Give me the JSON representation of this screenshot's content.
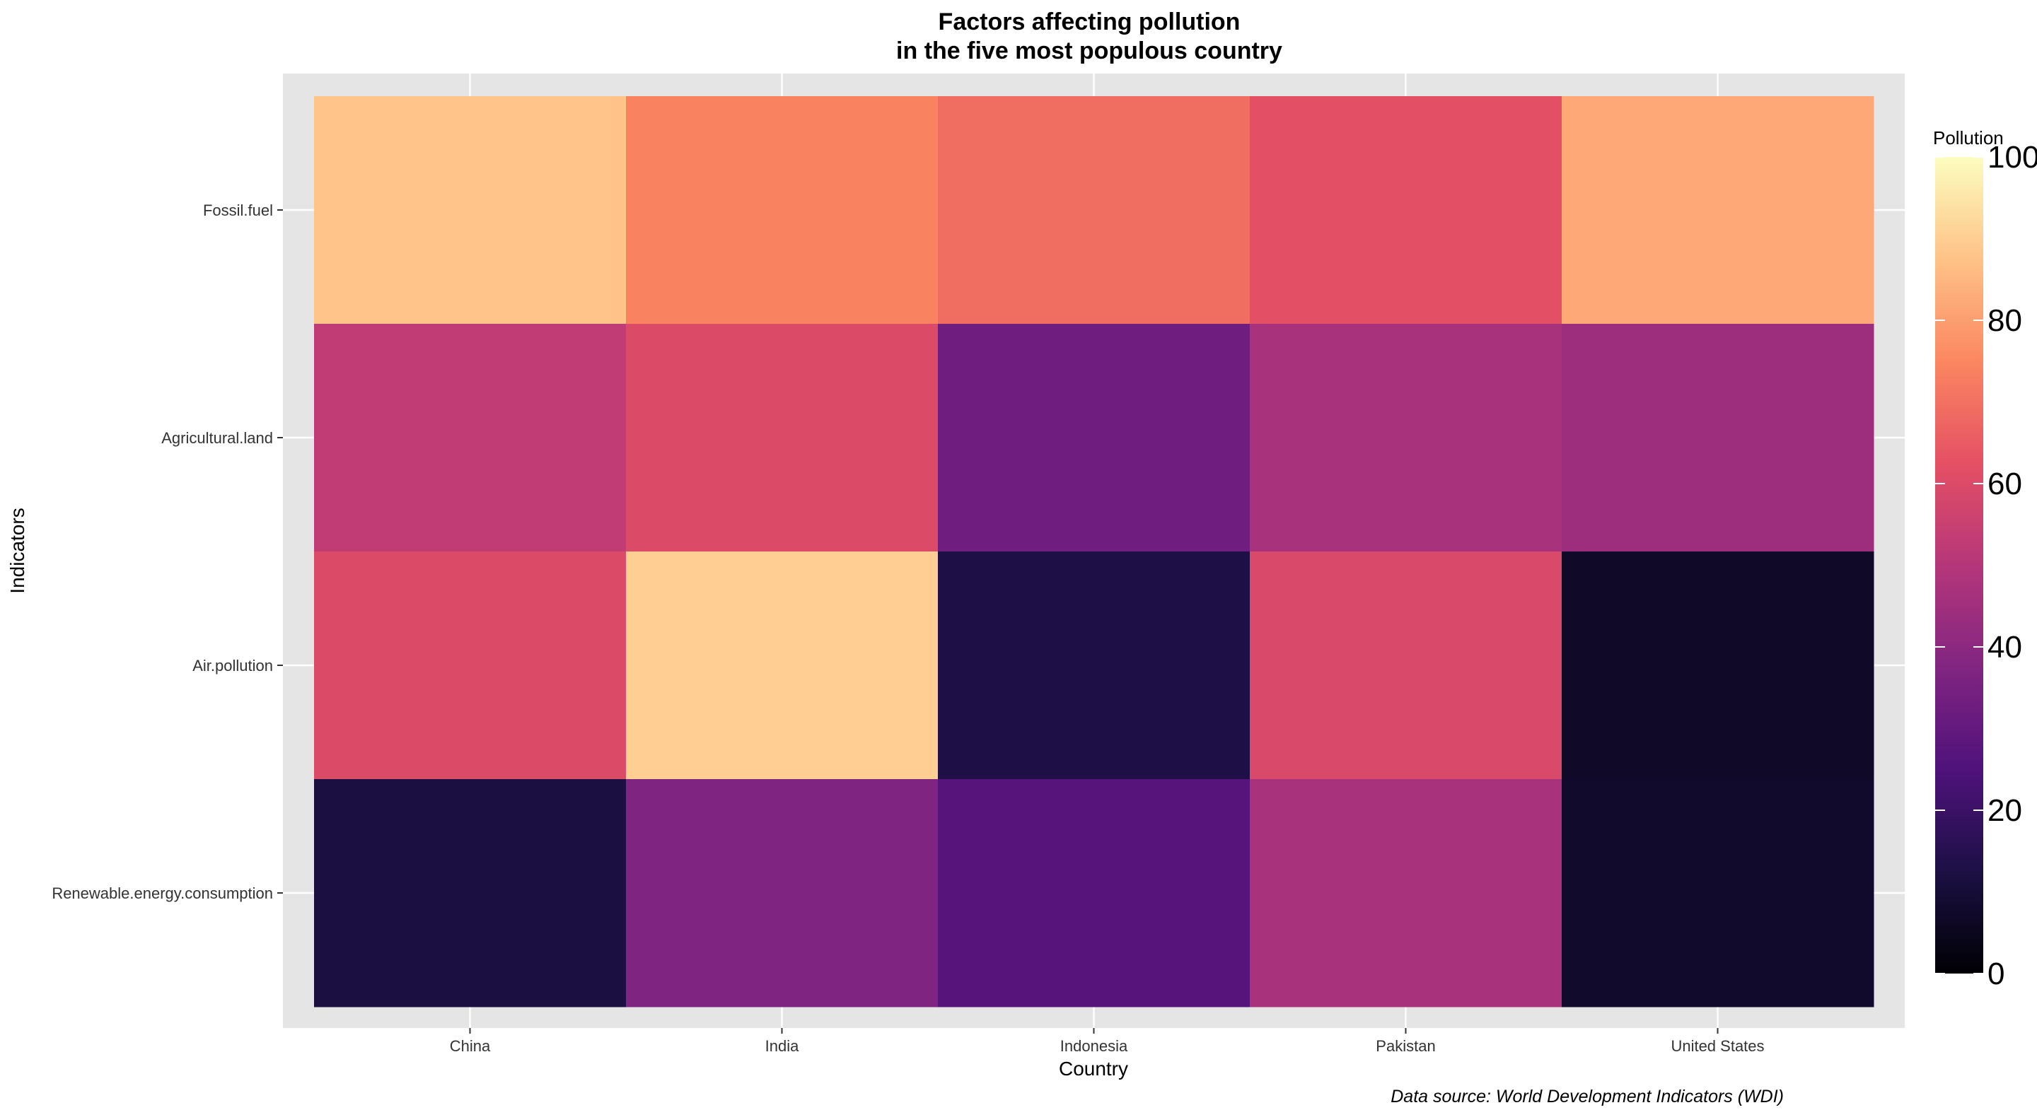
{
  "chart_data": {
    "type": "heatmap",
    "title_line1": "Factors affecting pollution",
    "title_line2": "in the five most populous country",
    "xlabel": "Country",
    "ylabel": "Indicators",
    "caption": "Data source: World Development Indicators (WDI)",
    "legend_title": "Pollution",
    "legend_ticks": [
      "0",
      "20",
      "40",
      "60",
      "80",
      "100"
    ],
    "color_range": [
      0,
      100
    ],
    "colormap": "magma",
    "x_categories": [
      "China",
      "India",
      "Indonesia",
      "Pakistan",
      "United States"
    ],
    "y_categories": [
      "Fossil.fuel",
      "Agricultural.land",
      "Air.pollution",
      "Renewable.energy.consumption"
    ],
    "values": [
      [
        88,
        74,
        69,
        62,
        82
      ],
      [
        53,
        60,
        33,
        47,
        44
      ],
      [
        60,
        90,
        13,
        59,
        7
      ],
      [
        12,
        37,
        27,
        47,
        8
      ]
    ]
  }
}
